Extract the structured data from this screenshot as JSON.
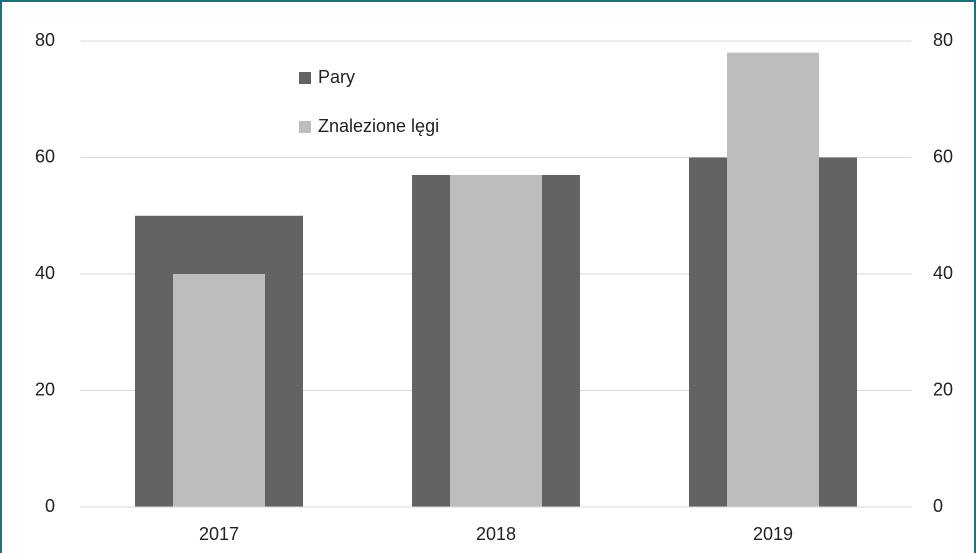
{
  "chart_data": {
    "type": "bar",
    "categories": [
      "2017",
      "2018",
      "2019"
    ],
    "series": [
      {
        "name": "Pary",
        "color": "#636363",
        "values": [
          50,
          57,
          60
        ]
      },
      {
        "name": "Znalezione lęgi",
        "color": "#bdbdbd",
        "values": [
          40,
          57,
          78
        ],
        "axis": "y2"
      }
    ],
    "ylim": [
      0,
      80
    ],
    "yticks": [
      0,
      20,
      40,
      60,
      80
    ],
    "y2lim": [
      0,
      80
    ],
    "y2ticks": [
      0,
      20,
      40,
      60,
      80
    ],
    "grid": true,
    "legend": "top-left"
  }
}
